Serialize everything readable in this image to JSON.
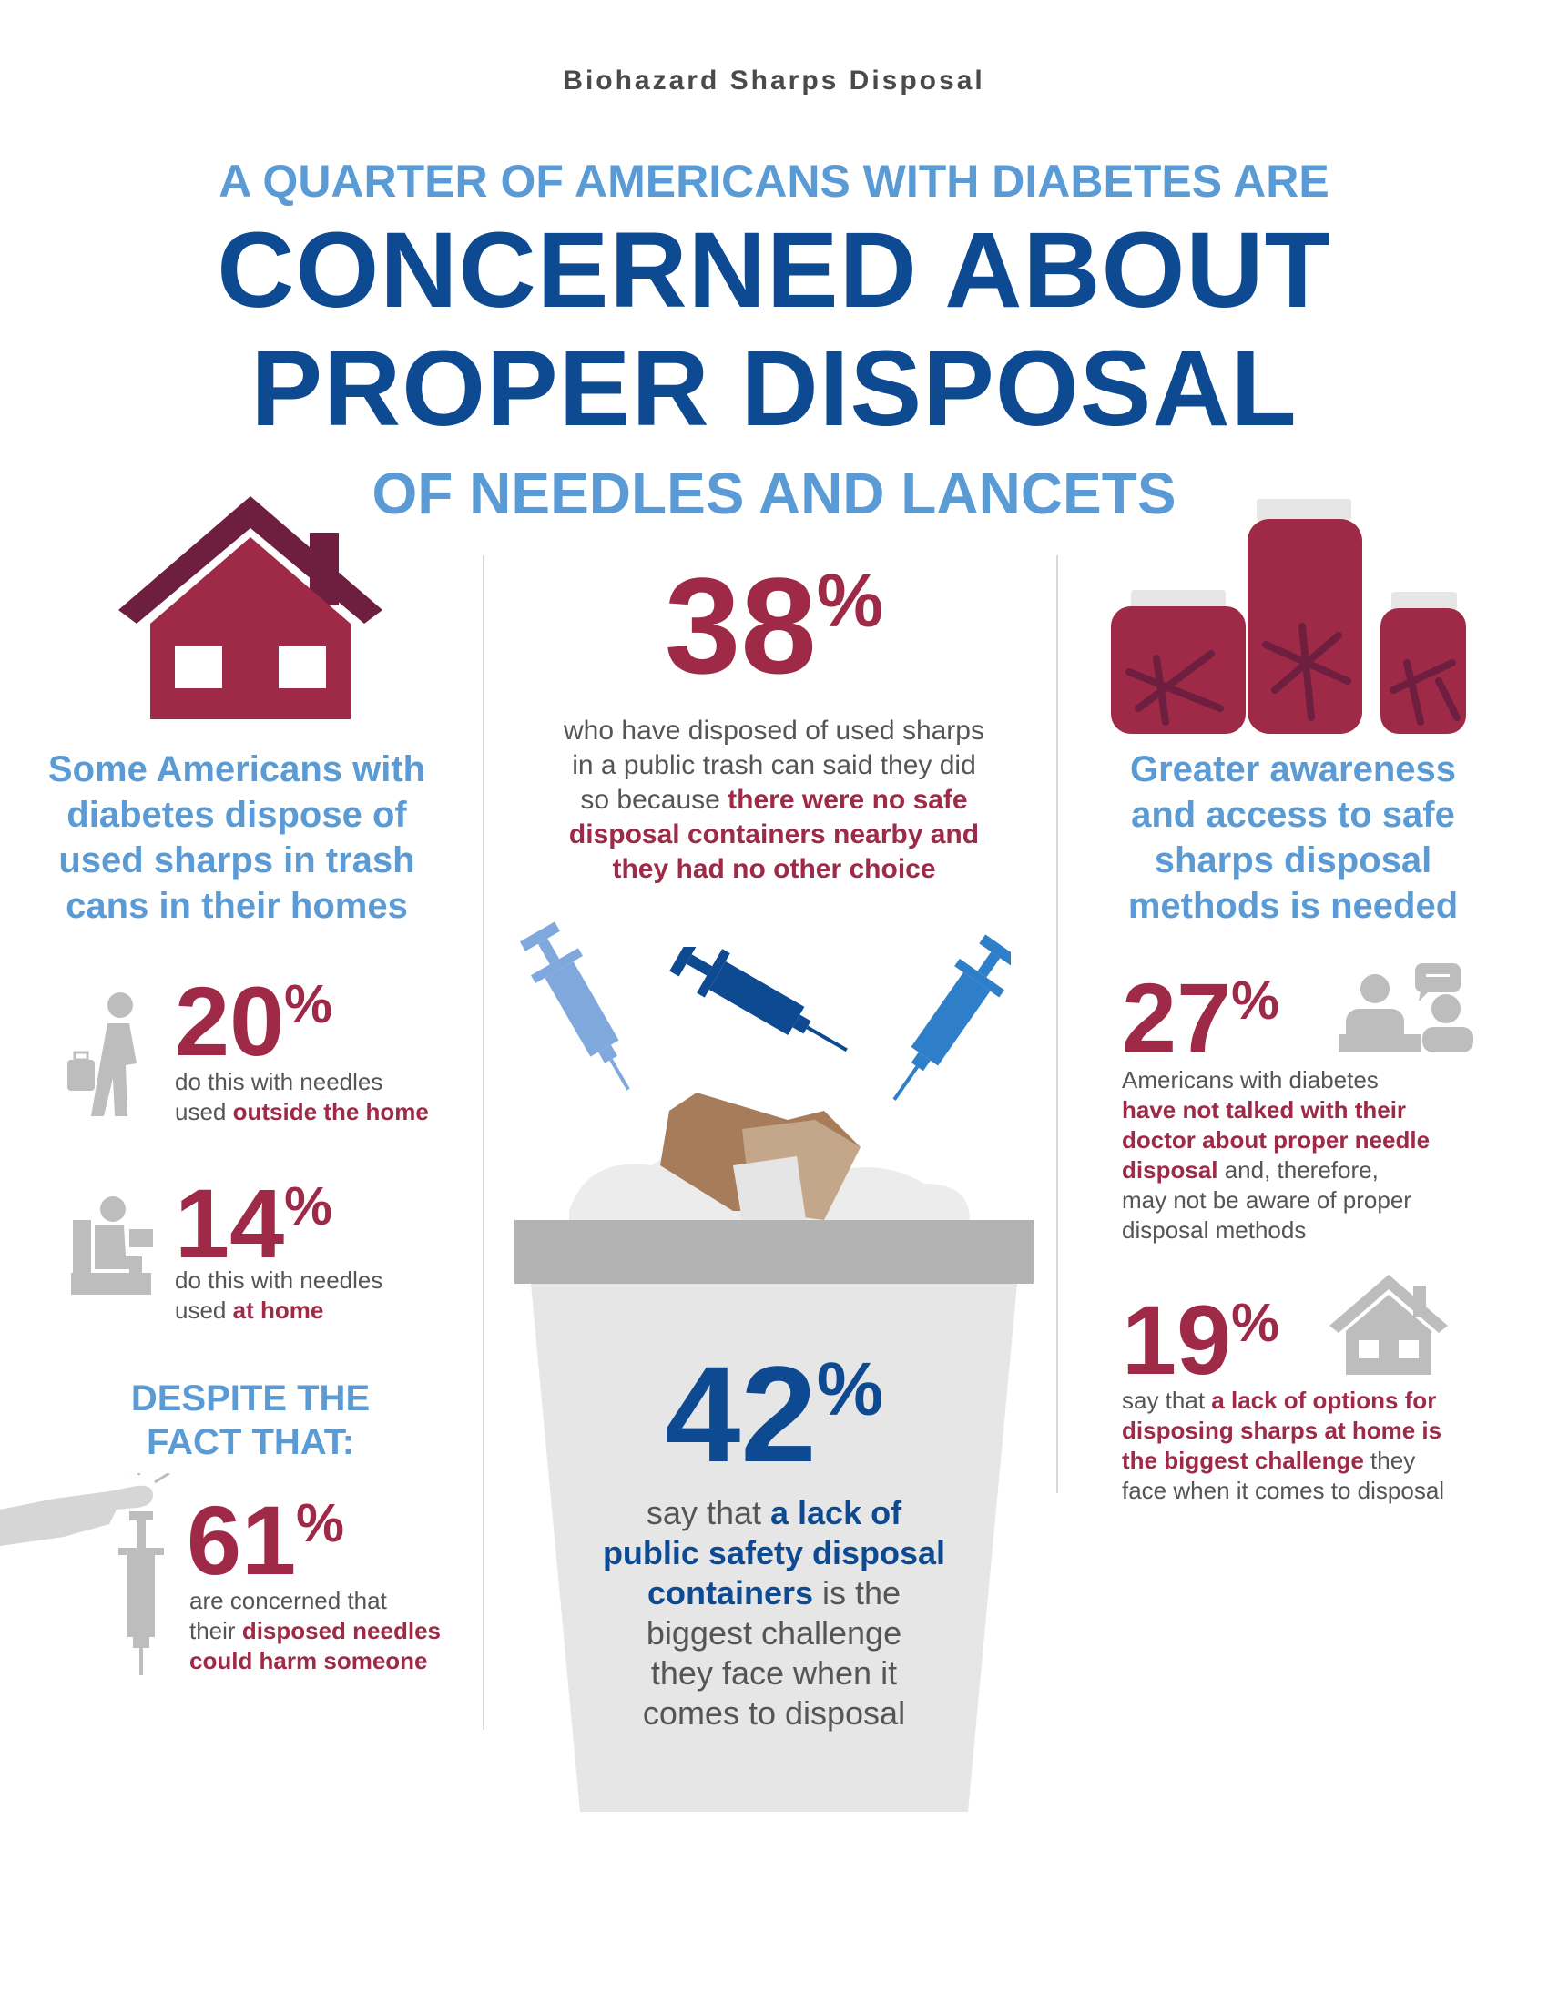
{
  "header": {
    "top_label": "Biohazard Sharps Disposal",
    "line1": "A QUARTER OF AMERICANS WITH DIABETES ARE",
    "line2": "CONCERNED ABOUT",
    "line3": "PROPER DISPOSAL",
    "line4": "OF NEEDLES AND LANCETS"
  },
  "left": {
    "heading": [
      "Some Americans with",
      "diabetes dispose of",
      "used sharps in trash",
      "cans in their homes"
    ],
    "stat_20": {
      "value": "20",
      "pct": "%",
      "text": "do this with needles",
      "text2": "used ",
      "emph": "outside the home"
    },
    "stat_14": {
      "value": "14",
      "pct": "%",
      "text": "do this with needles",
      "text2": "used ",
      "emph": "at home"
    },
    "despite": [
      "DESPITE THE",
      "FACT THAT:"
    ],
    "stat_61": {
      "value": "61",
      "pct": "%",
      "text": "are concerned that",
      "text2": "their ",
      "emph1": "disposed needles",
      "emph2": "could harm someone"
    }
  },
  "center": {
    "stat_38": {
      "value": "38",
      "pct": "%",
      "l1": "who have disposed of used sharps",
      "l2": "in a public trash can said they did",
      "l3a": "so because ",
      "l3b": "there were no safe",
      "l4": "disposal containers nearby and",
      "l5": "they had no other choice"
    },
    "stat_42": {
      "value": "42",
      "pct": "%",
      "l1a": "say that ",
      "l1b": "a lack of",
      "l2": "public safety disposal",
      "l3a": "containers",
      "l3b": " is the",
      "l4": "biggest challenge",
      "l5": "they face when it",
      "l6": "comes to disposal"
    }
  },
  "right": {
    "heading": [
      "Greater awareness",
      "and access to safe",
      "sharps disposal",
      "methods is needed"
    ],
    "stat_27": {
      "value": "27",
      "pct": "%",
      "l1": "Americans with diabetes",
      "l2": "have not talked with their",
      "l3": "doctor about proper needle",
      "l4a": "disposal",
      "l4b": " and, therefore,",
      "l5": "may not be aware of proper",
      "l6": "disposal methods"
    },
    "stat_19": {
      "value": "19",
      "pct": "%",
      "l1a": "say that ",
      "l1b": "a lack of options for",
      "l2": "disposing sharps at home is",
      "l3a": "the biggest challenge",
      "l3b": " they",
      "l4": "face when it comes to disposal"
    }
  },
  "colors": {
    "maroon": "#9e2a47",
    "navy": "#0d4a92",
    "light_blue": "#5b9bd5",
    "grey": "#bdbdbd"
  },
  "icons": [
    "house-icon",
    "walking-person-icon",
    "seated-person-icon",
    "pressing-hand-icon",
    "syringe-icon",
    "sharps-jars-icon",
    "conversation-icon",
    "small-house-icon",
    "trash-can-icon"
  ]
}
